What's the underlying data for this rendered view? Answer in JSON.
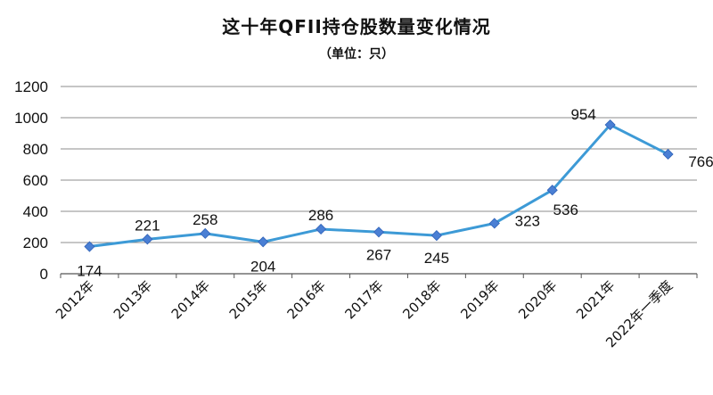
{
  "chart_data": {
    "type": "line",
    "title": "这十年QFII持仓股数量变化情况",
    "subtitle": "（单位：只）",
    "categories": [
      "2012年",
      "2013年",
      "2014年",
      "2015年",
      "2016年",
      "2017年",
      "2018年",
      "2019年",
      "2020年",
      "2021年",
      "2022年一季度"
    ],
    "values": [
      174,
      221,
      258,
      204,
      286,
      267,
      245,
      323,
      536,
      954,
      766
    ],
    "ylim": [
      0,
      1200
    ],
    "yticks": [
      0,
      200,
      400,
      600,
      800,
      1000,
      1200
    ],
    "grid": true,
    "line_color": "#3d9ad6",
    "marker_color": "#4a7fd4"
  }
}
